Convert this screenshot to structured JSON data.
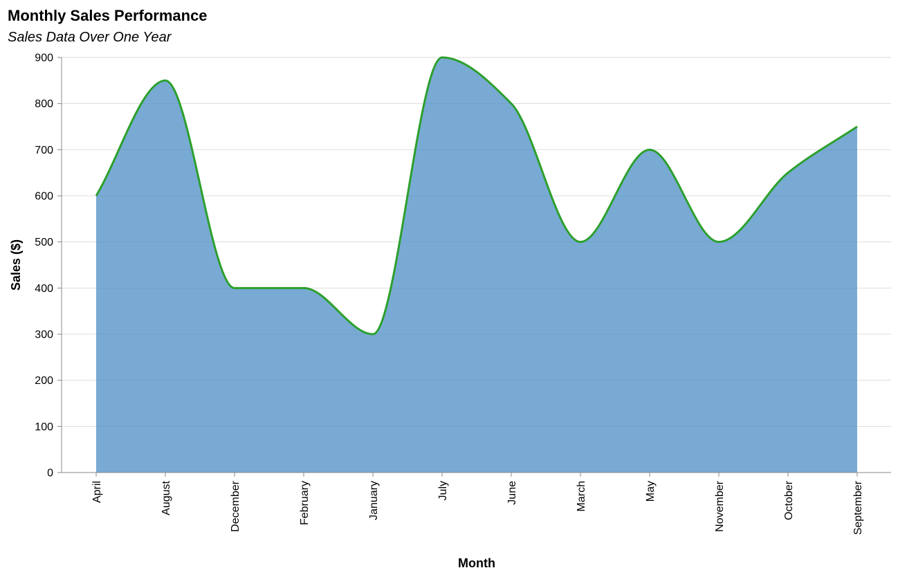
{
  "colors": {
    "area_fill": "#4c8ec4",
    "line_stroke": "#2ca02c",
    "grid": "#dddddd",
    "axis": "#888888"
  },
  "chart_data": {
    "type": "area",
    "title": "Monthly Sales Performance",
    "subtitle": "Sales Data Over One Year",
    "xlabel": "Month",
    "ylabel": "Sales ($)",
    "ylim": [
      0,
      900
    ],
    "yticks": [
      0,
      100,
      200,
      300,
      400,
      500,
      600,
      700,
      800,
      900
    ],
    "grid": true,
    "categories": [
      "April",
      "August",
      "December",
      "February",
      "January",
      "July",
      "June",
      "March",
      "May",
      "November",
      "October",
      "September"
    ],
    "values": [
      600,
      850,
      400,
      400,
      300,
      900,
      800,
      500,
      700,
      500,
      650,
      750
    ]
  }
}
